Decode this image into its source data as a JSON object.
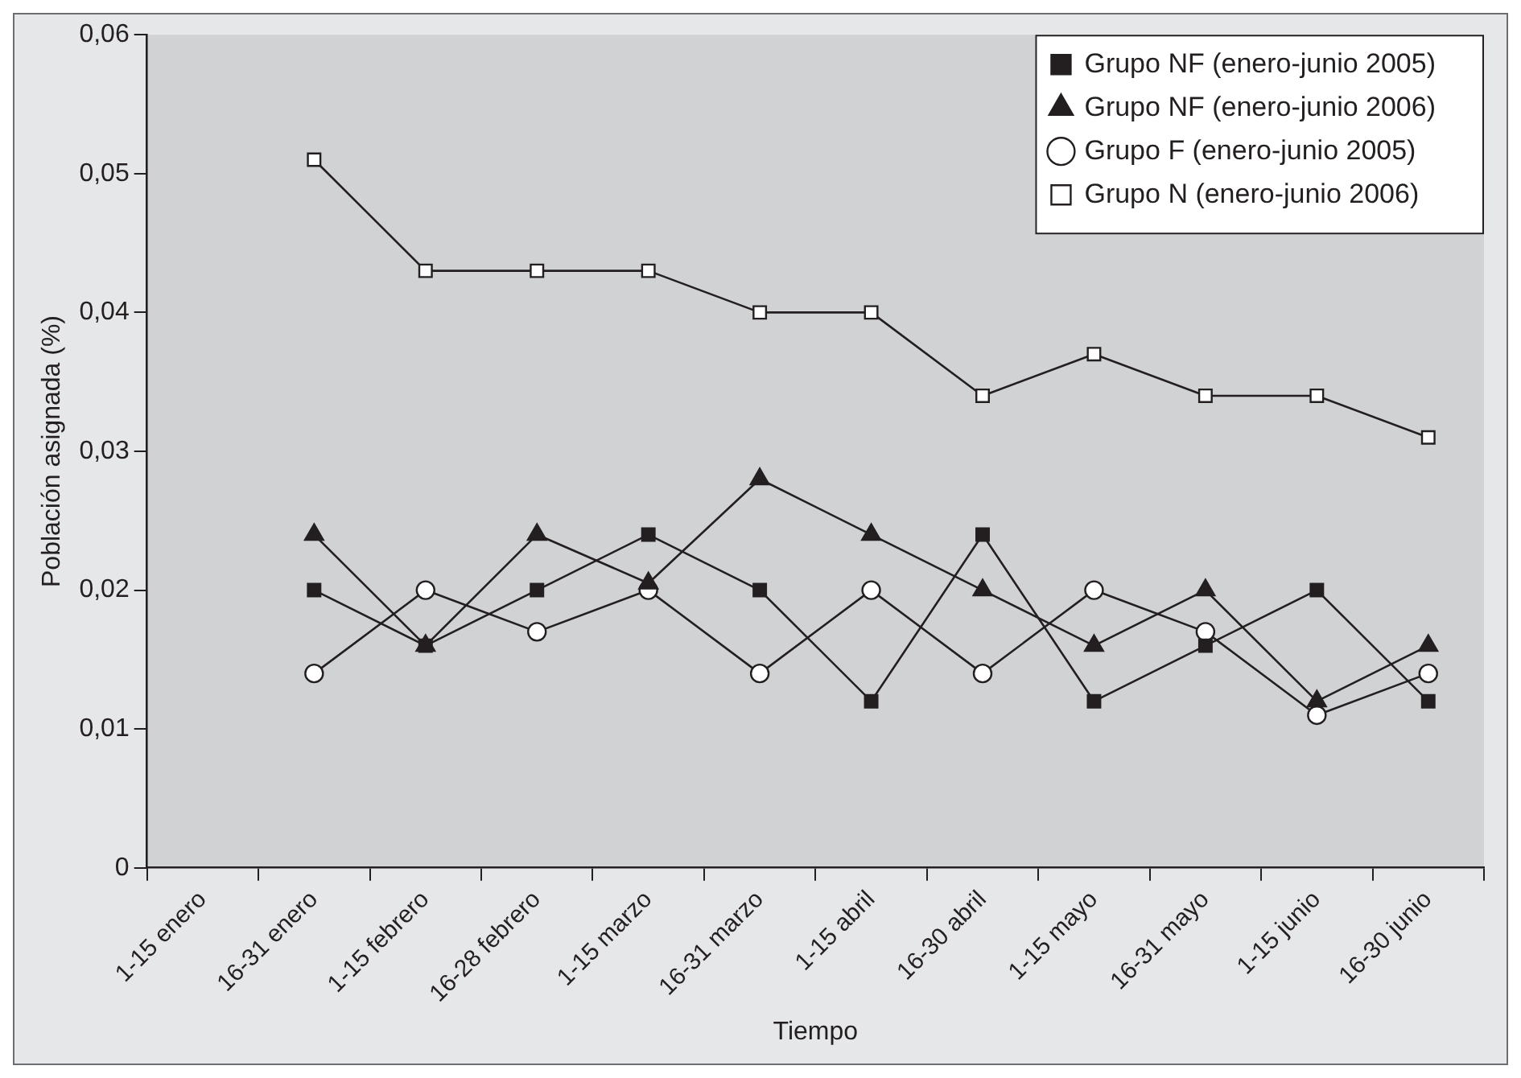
{
  "chart_data": {
    "type": "line",
    "xlabel": "Tiempo",
    "ylabel": "Población asignada (%)",
    "categories": [
      "1-15 enero",
      "16-31 enero",
      "1-15 febrero",
      "16-28 febrero",
      "1-15 marzo",
      "16-31 marzo",
      "1-15 abril",
      "16-30 abril",
      "1-15 mayo",
      "16-31 mayo",
      "1-15 junio",
      "16-30 junio"
    ],
    "ylim": [
      0,
      0.06
    ],
    "yticks": [
      {
        "value": 0,
        "label": "0"
      },
      {
        "value": 0.01,
        "label": "0,01"
      },
      {
        "value": 0.02,
        "label": "0,02"
      },
      {
        "value": 0.03,
        "label": "0,03"
      },
      {
        "value": 0.04,
        "label": "0,04"
      },
      {
        "value": 0.05,
        "label": "0,05"
      },
      {
        "value": 0.06,
        "label": "0,06"
      }
    ],
    "grid": false,
    "legend": "top right",
    "line_style": "solid",
    "series": [
      {
        "name": "Grupo NF (enero-junio 2005)",
        "color": "#231f20",
        "marker": "square",
        "values": [
          null,
          0.02,
          0.016,
          0.02,
          0.024,
          0.02,
          0.012,
          0.024,
          0.012,
          0.016,
          0.02,
          0.012
        ]
      },
      {
        "name": "Grupo NF (enero-junio 2006)",
        "color": "#231f20",
        "marker": "triangle",
        "values": [
          null,
          0.024,
          0.016,
          0.024,
          0.0205,
          0.028,
          0.024,
          0.02,
          0.016,
          0.02,
          0.012,
          0.016
        ]
      },
      {
        "name": "Grupo F (enero-junio 2005)",
        "color": "#ffffff",
        "marker": "circle",
        "values": [
          null,
          0.014,
          0.02,
          0.017,
          0.02,
          0.014,
          0.02,
          0.014,
          0.02,
          0.017,
          0.011,
          0.014
        ]
      },
      {
        "name": "Grupo N (enero-junio 2006)",
        "color": "#ffffff",
        "marker": "square",
        "values": [
          null,
          0.051,
          0.043,
          0.043,
          0.043,
          0.04,
          0.04,
          0.034,
          0.037,
          0.034,
          0.034,
          0.031
        ]
      }
    ]
  }
}
